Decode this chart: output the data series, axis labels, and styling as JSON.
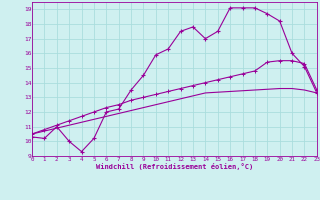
{
  "xlabel": "Windchill (Refroidissement éolien,°C)",
  "xlim": [
    0,
    23
  ],
  "ylim": [
    9,
    19.5
  ],
  "xticks": [
    0,
    1,
    2,
    3,
    4,
    5,
    6,
    7,
    8,
    9,
    10,
    11,
    12,
    13,
    14,
    15,
    16,
    17,
    18,
    19,
    20,
    21,
    22,
    23
  ],
  "yticks": [
    9,
    10,
    11,
    12,
    13,
    14,
    15,
    16,
    17,
    18,
    19
  ],
  "bg_color": "#cff0f0",
  "line_color": "#990099",
  "grid_color": "#aadddd",
  "series1_x": [
    0,
    1,
    2,
    3,
    4,
    5,
    6,
    7,
    8,
    9,
    10,
    11,
    12,
    13,
    14,
    15,
    16,
    17,
    18,
    19,
    20,
    21,
    22,
    23
  ],
  "series1_y": [
    10.3,
    10.2,
    11.0,
    10.0,
    9.3,
    10.2,
    12.0,
    12.2,
    13.5,
    14.5,
    15.9,
    16.3,
    17.5,
    17.8,
    17.0,
    17.5,
    19.1,
    19.1,
    19.1,
    18.7,
    18.2,
    16.0,
    15.1,
    13.3
  ],
  "series2_x": [
    0,
    1,
    2,
    3,
    4,
    5,
    6,
    7,
    8,
    9,
    10,
    11,
    12,
    13,
    14,
    15,
    16,
    17,
    18,
    19,
    20,
    21,
    22,
    23
  ],
  "series2_y": [
    10.5,
    10.7,
    10.9,
    11.1,
    11.3,
    11.5,
    11.7,
    11.9,
    12.1,
    12.3,
    12.5,
    12.7,
    12.9,
    13.1,
    13.3,
    13.35,
    13.4,
    13.45,
    13.5,
    13.55,
    13.6,
    13.6,
    13.5,
    13.3
  ],
  "series3_x": [
    0,
    1,
    2,
    3,
    4,
    5,
    6,
    7,
    8,
    9,
    10,
    11,
    12,
    13,
    14,
    15,
    16,
    17,
    18,
    19,
    20,
    21,
    22,
    23
  ],
  "series3_y": [
    10.5,
    10.8,
    11.1,
    11.4,
    11.7,
    12.0,
    12.3,
    12.5,
    12.8,
    13.0,
    13.2,
    13.4,
    13.6,
    13.8,
    14.0,
    14.2,
    14.4,
    14.6,
    14.8,
    15.4,
    15.5,
    15.5,
    15.3,
    13.5
  ]
}
